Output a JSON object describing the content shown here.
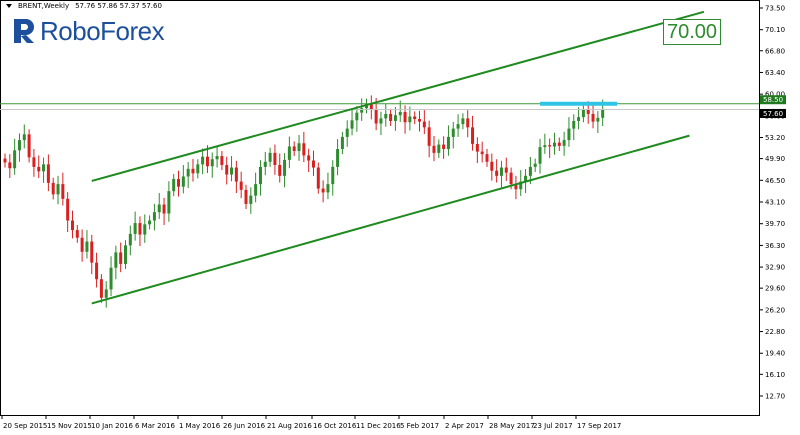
{
  "header": {
    "symbol": "BRENT,Weekly",
    "ohlc": "57.76 57.86 57.37 57.60"
  },
  "logo": {
    "text": "RoboForex"
  },
  "target": {
    "label": "70.00"
  },
  "price_tags": {
    "resistance": "58.50",
    "current": "57.60"
  },
  "colors": {
    "bull": "#2e8b2e",
    "bear": "#d92020",
    "channel": "#1f8a1f",
    "resistance_zone": "#2ec4e6",
    "logo_blue": "#1d4f9c"
  },
  "chart_data": {
    "type": "candlestick",
    "timeframe": "Weekly",
    "symbol": "BRENT",
    "ylim": [
      12.7,
      73.5
    ],
    "y_ticks": [
      "73.50",
      "70.10",
      "66.80",
      "63.40",
      "60.00",
      "56.60",
      "53.20",
      "49.90",
      "46.50",
      "43.10",
      "39.70",
      "36.30",
      "32.90",
      "29.60",
      "26.20",
      "22.80",
      "19.40",
      "16.10",
      "12.70"
    ],
    "x_ticks": [
      "20 Sep 2015",
      "15 Nov 2015",
      "10 Jan 2016",
      "6 Mar 2016",
      "1 May 2016",
      "26 Jun 2016",
      "21 Aug 2016",
      "16 Oct 2016",
      "11 Dec 2016",
      "5 Feb 2017",
      "2 Apr 2017",
      "28 May 2017",
      "23 Jul 2017",
      "17 Sep 2017"
    ],
    "horizontal_levels": [
      58.5,
      57.6
    ],
    "resistance_zone": {
      "price": 58.5,
      "from_week": 111,
      "to_week": 127
    },
    "channel": {
      "upper": [
        [
          18,
          46.4
        ],
        [
          145,
          72.9
        ]
      ],
      "lower": [
        [
          18,
          27.2
        ],
        [
          142,
          53.5
        ]
      ]
    },
    "target_level": 70.0,
    "closes": [
      49.3,
      48.4,
      51.2,
      52.8,
      53.7,
      50.1,
      48.6,
      47.9,
      49.0,
      46.1,
      44.3,
      45.9,
      43.6,
      40.2,
      38.7,
      37.5,
      35.3,
      36.9,
      33.6,
      31.0,
      28.1,
      29.4,
      32.8,
      35.2,
      33.4,
      36.3,
      38.1,
      39.8,
      38.0,
      39.6,
      40.2,
      41.5,
      42.7,
      41.3,
      44.8,
      46.7,
      45.5,
      47.1,
      48.3,
      47.6,
      49.0,
      50.2,
      48.7,
      49.8,
      50.3,
      48.9,
      47.4,
      48.5,
      46.3,
      45.0,
      42.8,
      44.1,
      45.9,
      48.6,
      49.4,
      50.8,
      48.9,
      47.2,
      49.7,
      51.8,
      51.1,
      52.3,
      50.4,
      49.6,
      48.5,
      45.2,
      44.6,
      45.9,
      48.6,
      51.4,
      53.3,
      54.6,
      55.9,
      57.1,
      57.8,
      58.5,
      57.6,
      55.4,
      56.2,
      56.9,
      55.8,
      56.7,
      57.2,
      55.6,
      56.5,
      56.1,
      55.7,
      54.8,
      51.9,
      50.8,
      52.1,
      51.4,
      53.3,
      54.6,
      55.3,
      56.2,
      54.8,
      52.2,
      51.0,
      50.6,
      49.4,
      48.0,
      47.2,
      48.5,
      47.7,
      45.9,
      45.1,
      46.3,
      47.2,
      48.6,
      49.1,
      51.7,
      52.0,
      51.8,
      52.4,
      51.9,
      52.8,
      54.6,
      55.8,
      56.4,
      57.6,
      56.9,
      55.7,
      56.3,
      57.6
    ]
  }
}
